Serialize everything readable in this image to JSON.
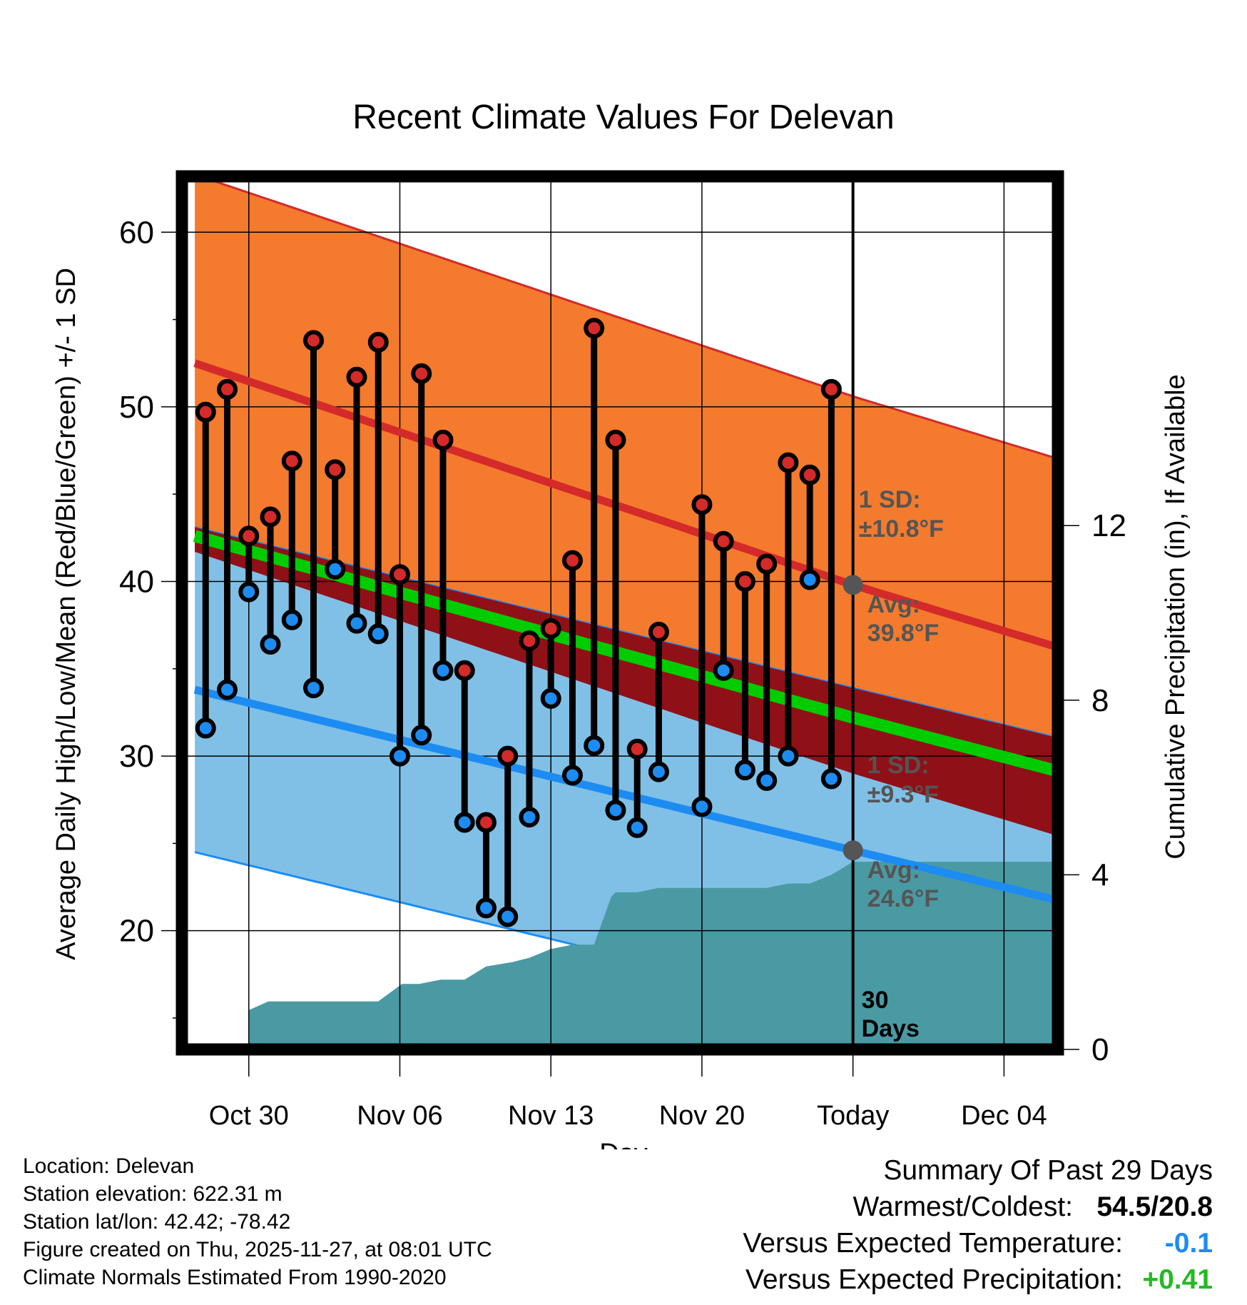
{
  "colors": {
    "high_band": "#F47A2E",
    "high_line": "#D42A2A",
    "low_band": "#80C0E6",
    "low_line": "#1C8CF2",
    "mean_line": "#00CC00",
    "mean_band": "#901018",
    "precip": "#4A9AA4",
    "high_marker": "#D42A2A",
    "low_marker": "#1C8CF2",
    "avg_dot": "#555555",
    "annotation": "#555555",
    "temp_delta": "#1C8CF2",
    "precip_delta": "#22BB22"
  },
  "chart_data": {
    "type": "line",
    "title": "Recent Climate Values For Delevan",
    "xlabel": "Day",
    "ylabel": "Average Daily High/Low/Mean (Red/Blue/Green) +/- 1 SD",
    "y2label": "Cumulative Precipitation (in), If Available",
    "x_range": [
      -2.1,
      38.5
    ],
    "ylim": [
      13.2,
      63.2
    ],
    "y_ticks": [
      20,
      30,
      40,
      50,
      60
    ],
    "y_minor_ticks": [
      15,
      25,
      35,
      45,
      55
    ],
    "y2lim": [
      0,
      20
    ],
    "y2_ticks": [
      0,
      4,
      8,
      12
    ],
    "x_ticks": [
      {
        "x": 1,
        "label": "Oct 30"
      },
      {
        "x": 8,
        "label": "Nov 06"
      },
      {
        "x": 15,
        "label": "Nov 13"
      },
      {
        "x": 22,
        "label": "Nov 20"
      },
      {
        "x": 29,
        "label": "Today"
      },
      {
        "x": 36,
        "label": "Dec 04"
      }
    ],
    "today_x": 29,
    "normals_x": [
      -1.5,
      29,
      38.3
    ],
    "normal_high": [
      52.5,
      39.8,
      36.3
    ],
    "normal_high_sd": 10.8,
    "normal_low": [
      33.8,
      24.6,
      21.8
    ],
    "normal_low_sd": 9.3,
    "normal_mean": [
      42.6,
      32.2,
      29.2
    ],
    "daily": [
      {
        "x": -1,
        "high": 49.7,
        "low": 31.6
      },
      {
        "x": 0,
        "high": 51.0,
        "low": 33.8
      },
      {
        "x": 1,
        "high": 42.6,
        "low": 39.4
      },
      {
        "x": 2,
        "high": 43.7,
        "low": 36.4
      },
      {
        "x": 3,
        "high": 46.9,
        "low": 37.8
      },
      {
        "x": 4,
        "high": 53.8,
        "low": 33.9
      },
      {
        "x": 5,
        "high": 46.4,
        "low": 40.7
      },
      {
        "x": 6,
        "high": 51.7,
        "low": 37.6
      },
      {
        "x": 7,
        "high": 53.7,
        "low": 37.0
      },
      {
        "x": 8,
        "high": 40.4,
        "low": 30.0
      },
      {
        "x": 9,
        "high": 51.9,
        "low": 31.2
      },
      {
        "x": 10,
        "high": 48.1,
        "low": 34.9
      },
      {
        "x": 11,
        "high": 34.9,
        "low": 26.2
      },
      {
        "x": 12,
        "high": 26.2,
        "low": 21.3
      },
      {
        "x": 13,
        "high": 30.0,
        "low": 20.8
      },
      {
        "x": 14,
        "high": 36.6,
        "low": 26.5
      },
      {
        "x": 15,
        "high": 37.3,
        "low": 33.3
      },
      {
        "x": 16,
        "high": 41.2,
        "low": 28.9
      },
      {
        "x": 17,
        "high": 54.5,
        "low": 30.6
      },
      {
        "x": 18,
        "high": 48.1,
        "low": 26.9
      },
      {
        "x": 19,
        "high": 30.4,
        "low": 25.9
      },
      {
        "x": 20,
        "high": 37.1,
        "low": 29.1
      },
      {
        "x": 22,
        "high": 44.4,
        "low": 27.1
      },
      {
        "x": 23,
        "high": 42.3,
        "low": 34.9
      },
      {
        "x": 24,
        "high": 40.0,
        "low": 29.2
      },
      {
        "x": 25,
        "high": 41.0,
        "low": 28.6
      },
      {
        "x": 26,
        "high": 46.8,
        "low": 30.0
      },
      {
        "x": 27,
        "high": 46.1,
        "low": 40.1
      },
      {
        "x": 28,
        "high": 51.0,
        "low": 28.7
      }
    ],
    "precip_cumulative": {
      "x": [
        -2.1,
        1.0,
        1.0,
        1.9,
        5.0,
        6.0,
        6.0,
        7.0,
        8.1,
        8.9,
        9.9,
        11.0,
        12.0,
        13.2,
        14.0,
        15.0,
        16.0,
        17.0,
        17.8,
        18.0,
        19.0,
        20.0,
        21.0,
        22.0,
        23.0,
        24.0,
        25.0,
        26.0,
        27.0,
        28.0,
        29.0,
        38.5
      ],
      "y": [
        0,
        0,
        0.9,
        1.1,
        1.1,
        1.1,
        1.1,
        1.1,
        1.5,
        1.5,
        1.6,
        1.6,
        1.9,
        2.0,
        2.1,
        2.3,
        2.4,
        2.4,
        3.5,
        3.6,
        3.6,
        3.7,
        3.7,
        3.7,
        3.7,
        3.7,
        3.7,
        3.8,
        3.8,
        4.0,
        4.3,
        4.3
      ]
    },
    "annotations": {
      "high_sd_label": "1 SD:",
      "high_sd_value": "±10.8°F",
      "high_avg_label": "Avg:",
      "high_avg_value": "39.8°F",
      "low_sd_label": "1 SD:",
      "low_sd_value": "±9.3°F",
      "low_avg_label": "Avg:",
      "low_avg_value": "24.6°F",
      "days_number": "30",
      "days_label": "Days"
    }
  },
  "info": {
    "location": "Location: Delevan",
    "elevation": "Station elevation: 622.31 m",
    "latlon": "Station lat/lon: 42.42; -78.42",
    "created": "Figure created on Thu, 2025-11-27, at 08:01 UTC",
    "normals": "Climate Normals Estimated From 1990-2020"
  },
  "summary": {
    "title": "Summary Of Past 29 Days",
    "warm_cold_label": "Warmest/Coldest:",
    "warm_cold_value": "54.5/20.8",
    "temp_label": "Versus Expected Temperature:",
    "temp_value": "-0.1",
    "precip_label": "Versus Expected Precipitation:",
    "precip_value": "+0.41"
  }
}
